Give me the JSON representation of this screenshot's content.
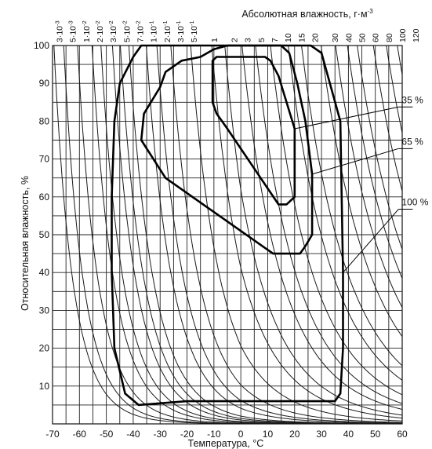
{
  "chart_data": {
    "type": "line",
    "xlabel": "Температура, °C",
    "ylabel": "Относительная влажность, %",
    "top_axis_label": "Абсолютная влажность, г·м",
    "top_axis_label_sup": "-3",
    "xlim": [
      -70,
      60
    ],
    "ylim": [
      0,
      100
    ],
    "x_ticks": [
      -70,
      -60,
      -50,
      -40,
      -30,
      -20,
      -10,
      0,
      10,
      20,
      30,
      40,
      50,
      60
    ],
    "y_ticks": [
      10,
      20,
      30,
      40,
      50,
      60,
      70,
      80,
      90,
      100
    ],
    "grid": true,
    "absolute_humidity_ticks": [
      {
        "label": "3·10",
        "sup": "-3",
        "value": 0.003,
        "x": -67.5
      },
      {
        "label": "5·10",
        "sup": "-3",
        "value": 0.005,
        "x": -62.5
      },
      {
        "label": "1·10",
        "sup": "-2",
        "value": 0.01,
        "x": -57.5
      },
      {
        "label": "2·10",
        "sup": "-2",
        "value": 0.02,
        "x": -52.5
      },
      {
        "label": "3·10",
        "sup": "-2",
        "value": 0.03,
        "x": -47.5
      },
      {
        "label": "5·10",
        "sup": "-2",
        "value": 0.05,
        "x": -42.5
      },
      {
        "label": "7·10",
        "sup": "-2",
        "value": 0.07,
        "x": -37.5
      },
      {
        "label": "1·10",
        "sup": "-1",
        "value": 0.1,
        "x": -32.5
      },
      {
        "label": "2·10",
        "sup": "-1",
        "value": 0.2,
        "x": -27.5
      },
      {
        "label": "3·10",
        "sup": "-1",
        "value": 0.3,
        "x": -22.5
      },
      {
        "label": "5·10",
        "sup": "-1",
        "value": 0.5,
        "x": -17.5
      },
      {
        "label": "1",
        "sup": "",
        "value": 1,
        "x": -10
      },
      {
        "label": "2",
        "sup": "",
        "value": 2,
        "x": -2.5
      },
      {
        "label": "3",
        "sup": "",
        "value": 3,
        "x": 2.5
      },
      {
        "label": "5",
        "sup": "",
        "value": 5,
        "x": 7.5
      },
      {
        "label": "7",
        "sup": "",
        "value": 7,
        "x": 12.5
      },
      {
        "label": "10",
        "sup": "",
        "value": 10,
        "x": 17.5
      },
      {
        "label": "15",
        "sup": "",
        "value": 15,
        "x": 22.5
      },
      {
        "label": "20",
        "sup": "",
        "value": 20,
        "x": 27.5
      },
      {
        "label": "30",
        "sup": "",
        "value": 30,
        "x": 35
      },
      {
        "label": "40",
        "sup": "",
        "value": 40,
        "x": 40
      },
      {
        "label": "50",
        "sup": "",
        "value": 50,
        "x": 45
      },
      {
        "label": "60",
        "sup": "",
        "value": 60,
        "x": 50
      },
      {
        "label": "80",
        "sup": "",
        "value": 80,
        "x": 55
      },
      {
        "label": "100",
        "sup": "",
        "value": 100,
        "x": 60
      },
      {
        "label": "120",
        "sup": "",
        "value": 120,
        "x": 65
      }
    ],
    "series": [
      {
        "name": "100 %",
        "label_point": [
          47,
          58
        ],
        "x": [
          -37,
          -33,
          -27,
          -15,
          0,
          15,
          26,
          30,
          37,
          37.5,
          38,
          38,
          37,
          35,
          -20,
          -38,
          -43,
          -47,
          -48,
          -48,
          -47,
          -45,
          -40,
          -37
        ],
        "y": [
          100,
          100,
          100,
          100,
          100,
          100,
          100,
          98,
          80,
          60,
          40,
          20,
          8,
          6,
          6,
          5,
          8,
          20,
          40,
          60,
          80,
          90,
          97,
          100
        ]
      },
      {
        "name": "65 %",
        "label_point": [
          47,
          74
        ],
        "x": [
          -15,
          -10,
          -5,
          10,
          15,
          18,
          21,
          24,
          26.5,
          26.5,
          24,
          22,
          12,
          10,
          -10,
          -28,
          -37,
          -36,
          -30,
          -28,
          -22,
          -15
        ],
        "y": [
          97,
          99,
          100,
          100,
          100,
          98,
          90,
          80,
          66,
          50,
          47,
          45,
          45,
          46,
          56,
          65,
          75,
          82,
          89,
          93,
          96,
          97
        ]
      },
      {
        "name": "35 %",
        "label_point": [
          47,
          85
        ],
        "x": [
          -10.5,
          -9,
          0,
          9,
          11,
          14,
          17,
          20,
          20,
          17,
          14,
          -5,
          -9,
          -10.5,
          -10.5
        ],
        "y": [
          96,
          97,
          97,
          97,
          96,
          92,
          85,
          78,
          60,
          58,
          58,
          78,
          82,
          85,
          96
        ]
      }
    ]
  }
}
